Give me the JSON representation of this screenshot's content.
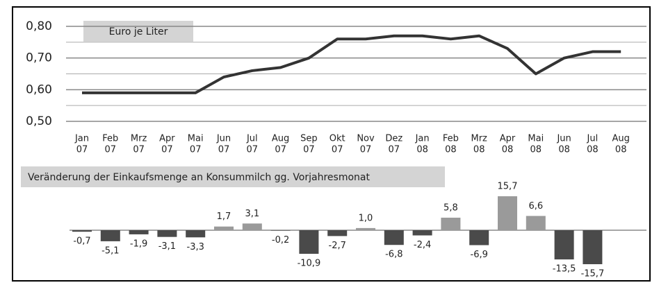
{
  "chart_data": [
    {
      "type": "line",
      "title": "Euro je Liter",
      "categories": [
        [
          "Jan",
          "07"
        ],
        [
          "Feb",
          "07"
        ],
        [
          "Mrz",
          "07"
        ],
        [
          "Apr",
          "07"
        ],
        [
          "Mai",
          "07"
        ],
        [
          "Jun",
          "07"
        ],
        [
          "Jul",
          "07"
        ],
        [
          "Aug",
          "07"
        ],
        [
          "Sep",
          "07"
        ],
        [
          "Okt",
          "07"
        ],
        [
          "Nov",
          "07"
        ],
        [
          "Dez",
          "07"
        ],
        [
          "Jan",
          "08"
        ],
        [
          "Feb",
          "08"
        ],
        [
          "Mrz",
          "08"
        ],
        [
          "Apr",
          "08"
        ],
        [
          "Mai",
          "08"
        ],
        [
          "Jun",
          "08"
        ],
        [
          "Jul",
          "08"
        ],
        [
          "Aug",
          "08"
        ]
      ],
      "values": [
        0.59,
        0.59,
        0.59,
        0.59,
        0.59,
        0.64,
        0.66,
        0.67,
        0.7,
        0.76,
        0.76,
        0.77,
        0.77,
        0.76,
        0.77,
        0.73,
        0.65,
        0.7,
        0.72,
        0.72
      ],
      "color": "#333333",
      "ylim": [
        0.5,
        0.8
      ],
      "yticks": [
        {
          "value": 0.5,
          "label": "0,50"
        },
        {
          "value": 0.6,
          "label": "0,60"
        },
        {
          "value": 0.7,
          "label": "0,70"
        },
        {
          "value": 0.8,
          "label": "0,80"
        }
      ],
      "minor_yticks": [
        0.55,
        0.65,
        0.75
      ],
      "grid": true
    },
    {
      "type": "bar",
      "title": "Veränderung der Einkaufsmenge an Konsummilch gg. Vorjahresmonat",
      "values": [
        -0.7,
        -5.1,
        -1.9,
        -3.1,
        -3.3,
        1.7,
        3.1,
        -0.2,
        -10.9,
        -2.7,
        1.0,
        -6.8,
        -2.4,
        5.8,
        -6.9,
        15.7,
        6.6,
        -13.5,
        -15.7,
        null
      ],
      "value_labels": [
        "-0,7",
        "-5,1",
        "-1,9",
        "-3,1",
        "-3,3",
        "1,7",
        "3,1",
        "-0,2",
        "-10,9",
        "-2,7",
        "1,0",
        "-6,8",
        "-2,4",
        "5,8",
        "-6,9",
        "15,7",
        "6,6",
        "-13,5",
        "-15,7",
        null
      ],
      "positive_color": "#9a9a9a",
      "negative_color": "#4a4a4a"
    }
  ]
}
